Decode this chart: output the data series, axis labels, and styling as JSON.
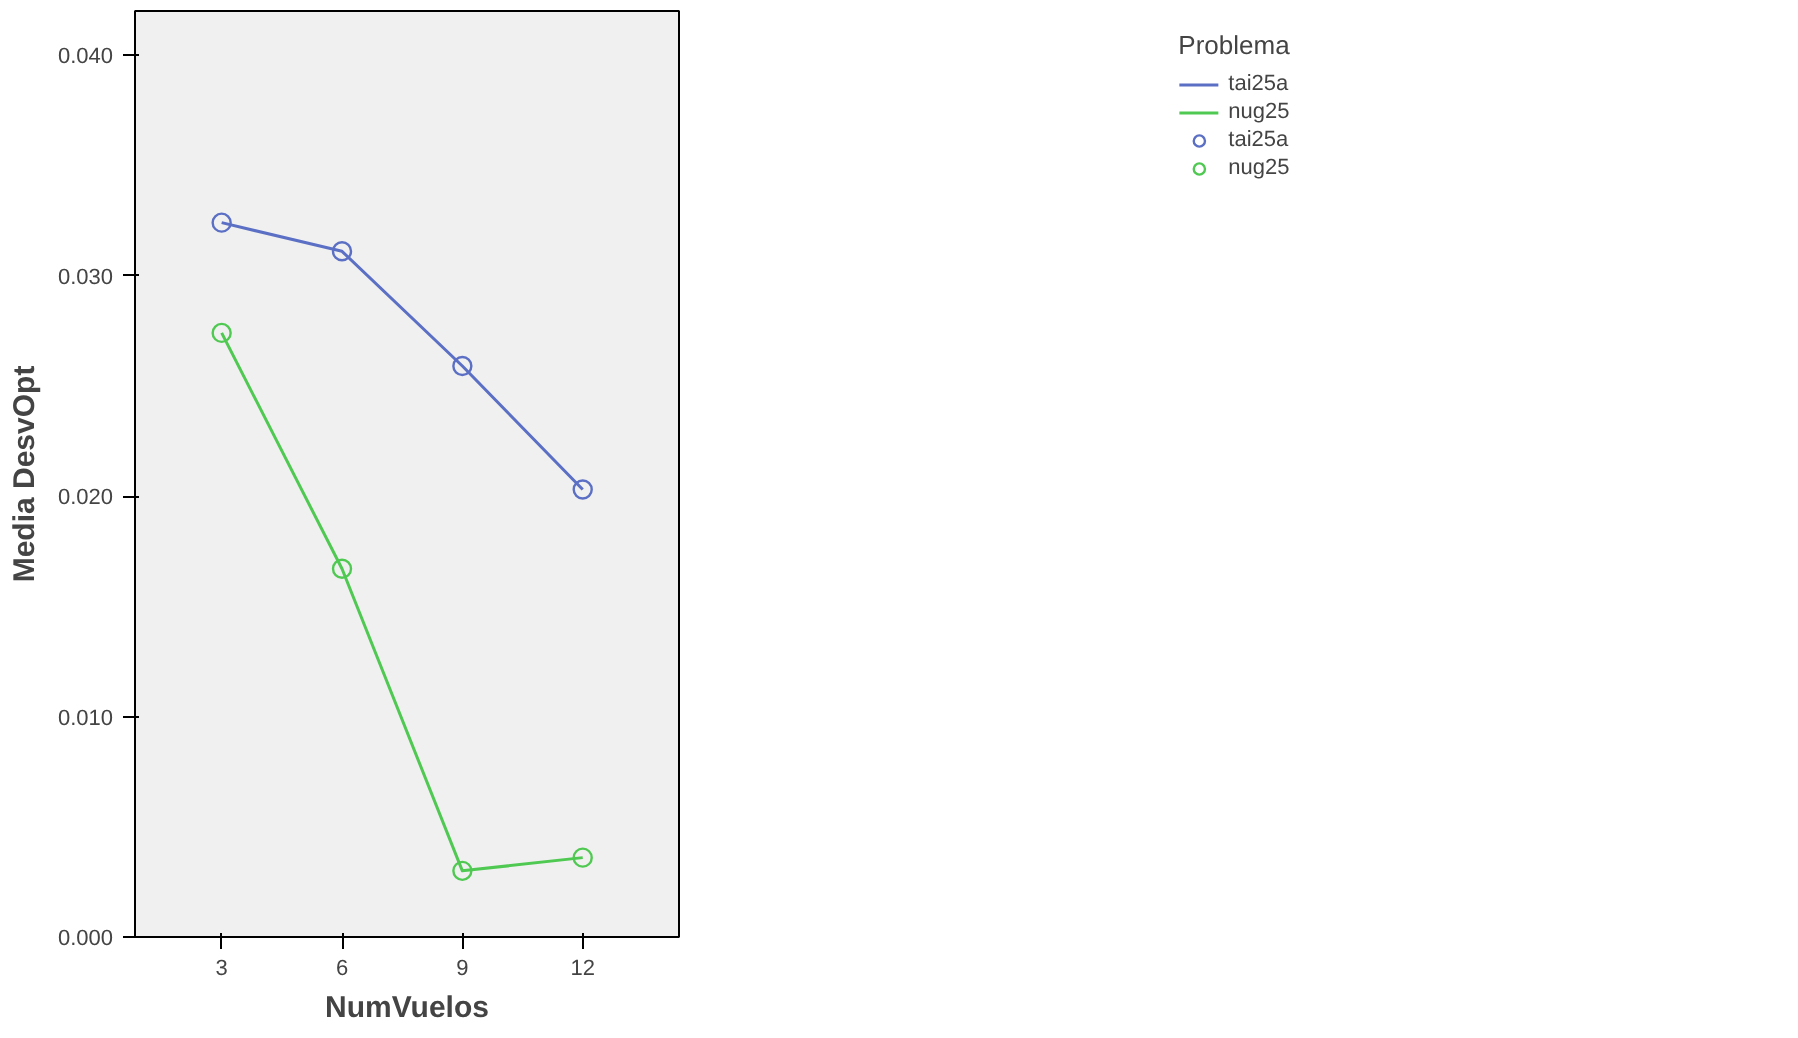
{
  "chart_data": {
    "type": "line",
    "xlabel": "NumVuelos",
    "ylabel": "Media DesvOpt",
    "legend_title": "Problema",
    "x": [
      3,
      6,
      9,
      12
    ],
    "xlim": [
      0.84,
      14.4
    ],
    "xticks": [
      3,
      6,
      9,
      12
    ],
    "ylim": [
      0,
      0.042
    ],
    "yticks": [
      {
        "value": 0,
        "label": "0.000"
      },
      {
        "value": 0.01,
        "label": "0.010"
      },
      {
        "value": 0.02,
        "label": "0.020"
      },
      {
        "value": 0.03,
        "label": "0.030"
      },
      {
        "value": 0.04,
        "label": "0.040"
      }
    ],
    "grid": false,
    "legend": "top right",
    "marker": "circle",
    "line_style": "solid",
    "series": [
      {
        "name": "tai25a",
        "color": "#5b6fc4",
        "values": [
          0.0324,
          0.0311,
          0.0259,
          0.0203
        ]
      },
      {
        "name": "nug25",
        "color": "#4fc951",
        "values": [
          0.0274,
          0.0167,
          0.003,
          0.0036
        ]
      }
    ]
  }
}
